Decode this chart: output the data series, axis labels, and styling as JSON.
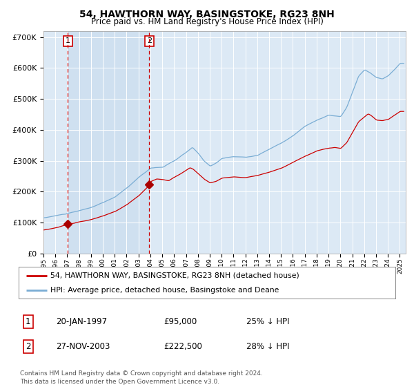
{
  "title": "54, HAWTHORN WAY, BASINGSTOKE, RG23 8NH",
  "subtitle": "Price paid vs. HM Land Registry's House Price Index (HPI)",
  "legend_line1": "54, HAWTHORN WAY, BASINGSTOKE, RG23 8NH (detached house)",
  "legend_line2": "HPI: Average price, detached house, Basingstoke and Deane",
  "footer": "Contains HM Land Registry data © Crown copyright and database right 2024.\nThis data is licensed under the Open Government Licence v3.0.",
  "sale1_date": "20-JAN-1997",
  "sale1_price": 95000,
  "sale1_hpi": "25% ↓ HPI",
  "sale2_date": "27-NOV-2003",
  "sale2_price": 222500,
  "sale2_hpi": "28% ↓ HPI",
  "ylim": [
    0,
    720000
  ],
  "xlim_start": 1995.0,
  "xlim_end": 2025.5,
  "sale1_x": 1997.055,
  "sale2_x": 2003.9,
  "red_line_color": "#cc0000",
  "blue_line_color": "#7aadd4",
  "bg_color": "#dce9f5",
  "shade_color": "#c5d9ee",
  "vline_color": "#cc0000",
  "marker_color": "#aa0000",
  "box_color": "#cc0000",
  "grid_color": "#ffffff",
  "spine_color": "#aaaaaa"
}
